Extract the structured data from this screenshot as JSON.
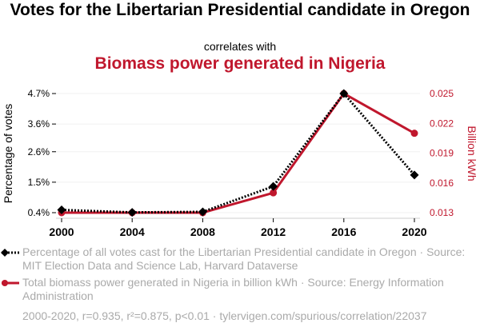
{
  "chart_data": {
    "type": "line",
    "title": "Votes for the Libertarian Presidential candidate in Oregon",
    "subtitle": "correlates with",
    "title2": "Biomass power generated in Nigeria",
    "x": [
      2000,
      2004,
      2008,
      2012,
      2016,
      2020
    ],
    "x_ticks": [
      "2000",
      "2004",
      "2008",
      "2012",
      "2016",
      "2020"
    ],
    "ylabel": "Percentage of votes",
    "ylabel_right": "Billion kWh",
    "y_ticks": [
      "4.7%",
      "3.6%",
      "2.6%",
      "1.5%",
      "0.4%"
    ],
    "y_tick_values": [
      4.7,
      3.6,
      2.6,
      1.5,
      0.4
    ],
    "y_right_ticks": [
      "0.025",
      "0.022",
      "0.019",
      "0.016",
      "0.013"
    ],
    "y_right_tick_values": [
      0.025,
      0.022,
      0.019,
      0.016,
      0.013
    ],
    "ylim": [
      0.4,
      4.7
    ],
    "ylim_right": [
      0.013,
      0.025
    ],
    "grid": true,
    "series": [
      {
        "name": "Percentage of all votes cast for the Libertarian Presidential candidate in Oregon · Source: MIT Election Data and Science Lab, Harvard Dataverse",
        "axis": "left",
        "color": "#000000",
        "style": "dotted",
        "marker": "diamond",
        "values": [
          0.5,
          0.41,
          0.43,
          1.35,
          4.7,
          1.76
        ]
      },
      {
        "name": "Total biomass power generated in Nigeria in billion kWh · Source: Energy Information Administration",
        "axis": "right",
        "color": "#c0172d",
        "style": "solid",
        "marker": "circle",
        "values": [
          0.013,
          0.013,
          0.013,
          0.015,
          0.025,
          0.021
        ]
      }
    ],
    "footer": "2000-2020, r=0.935, r²=0.875, p<0.01 · tylervigen.com/spurious/correlation/22037"
  }
}
